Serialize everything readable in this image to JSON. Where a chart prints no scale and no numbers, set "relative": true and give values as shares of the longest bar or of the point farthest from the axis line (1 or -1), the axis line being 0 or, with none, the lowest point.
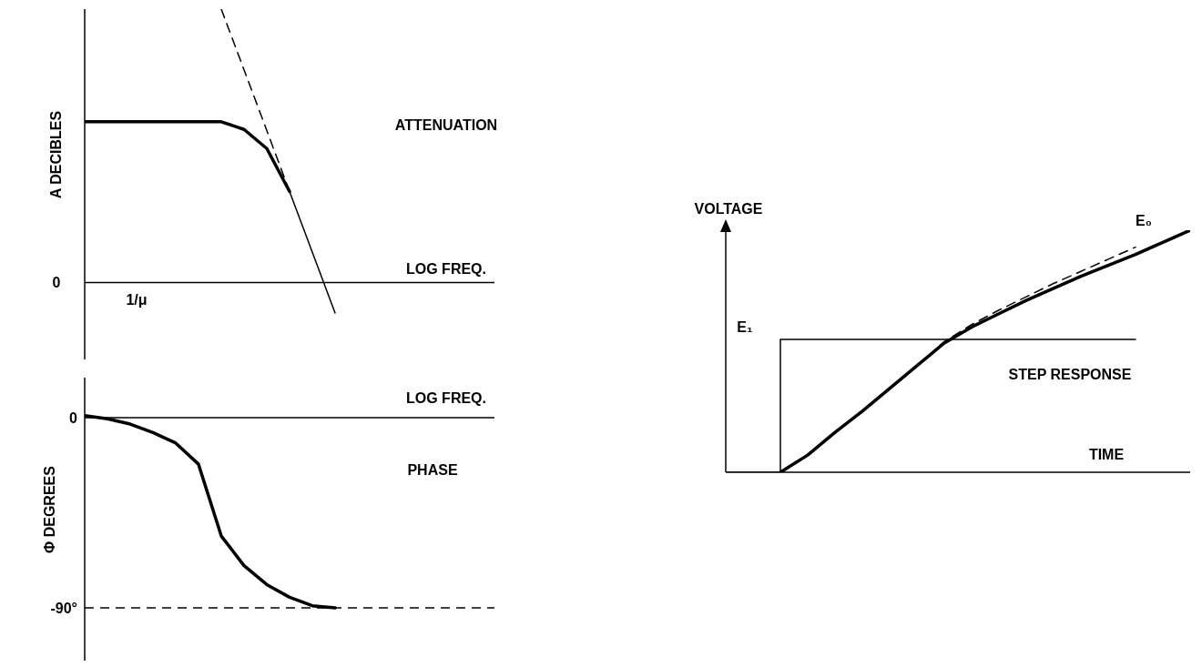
{
  "chart_data": [
    {
      "type": "line",
      "title": "ATTENUATION",
      "xlabel": "LOG FREQ.",
      "ylabel": "A DECIBLES",
      "relative": true,
      "marker": "none",
      "annotations": [
        "0",
        "1/μ"
      ],
      "categories": [
        null,
        null,
        null,
        null,
        null,
        null,
        null,
        null,
        null,
        null,
        null,
        null,
        null,
        null,
        null,
        null,
        null,
        null,
        null
      ],
      "series": [
        {
          "color": "#000000",
          "line_style": "solid",
          "values": [
            0.588,
            0.588,
            0.588,
            0.588,
            0.588,
            0.588,
            0.588,
            0.56,
            0.49,
            0.333,
            null,
            null,
            null,
            null,
            null,
            null,
            null,
            null,
            null
          ]
        },
        {
          "color": "#000000",
          "line_style": "solid",
          "values": [
            null,
            null,
            null,
            null,
            null,
            null,
            null,
            null,
            null,
            0.333,
            0.111,
            -0.111,
            null,
            null,
            null,
            null,
            null,
            null,
            null
          ]
        },
        {
          "color": "#000000",
          "line_style": "dashed",
          "values": [
            null,
            null,
            null,
            null,
            null,
            null,
            1,
            0.778,
            0.556,
            0.333,
            null,
            null,
            null,
            null,
            null,
            null,
            null,
            null,
            null
          ]
        }
      ]
    },
    {
      "type": "line",
      "title": "PHASE",
      "xlabel": "LOG FREQ.",
      "ylabel": "Φ DEGREES",
      "marker": "none",
      "ylim": [
        -115,
        19
      ],
      "yticks": [
        0,
        {
          "value": -90,
          "label": "-90°"
        }
      ],
      "ref_lines": [
        {
          "axis": "y",
          "value": 0,
          "color": "#000000",
          "line_style": "solid"
        },
        {
          "axis": "y",
          "value": -90,
          "color": "#000000",
          "line_style": "dashed"
        }
      ],
      "categories": [
        null,
        null,
        null,
        null,
        null,
        null,
        null,
        null,
        null,
        null,
        null,
        null,
        null,
        null,
        null,
        null,
        null,
        null,
        null
      ],
      "series": [
        {
          "color": "#000000",
          "line_style": "solid",
          "values": [
            1,
            -0.5,
            -3,
            -7,
            -12,
            -22,
            -56,
            -70,
            -79,
            -85,
            -89,
            -90,
            null,
            null,
            null,
            null,
            null,
            null,
            null
          ]
        }
      ]
    },
    {
      "type": "line",
      "xlabel": "TIME",
      "ylabel": "VOLTAGE",
      "relative": true,
      "marker": "none",
      "annotations": [
        "STEP RESPONSE"
      ],
      "categories": [
        null,
        null,
        null,
        null,
        null,
        null,
        null,
        null,
        null,
        null,
        null,
        null,
        null,
        null,
        null,
        null,
        null,
        null
      ],
      "series": [
        {
          "color": "#000000",
          "line_style": "solid",
          "values": [
            null,
            null,
            0,
            0.071,
            0.165,
            0.252,
            0.346,
            0.44,
            0.534,
            0.6,
            0.655,
            0.71,
            0.76,
            0.81,
            0.855,
            0.9,
            0.95,
            1
          ]
        },
        {
          "name": "E₀",
          "color": "#000000",
          "line_style": "dashed",
          "values": [
            null,
            null,
            null,
            null,
            null,
            null,
            null,
            0.44,
            0.54,
            0.61,
            0.67,
            0.725,
            0.78,
            0.83,
            0.88,
            0.93,
            null,
            null
          ]
        },
        {
          "name": "E₁",
          "type": "step",
          "color": "#000000",
          "line_style": "solid",
          "values": [
            0,
            0,
            0.549,
            0.549,
            0.549,
            0.549,
            0.549,
            0.549,
            0.549,
            0.549,
            0.549,
            0.549,
            0.549,
            0.549,
            0.549,
            0.549,
            null,
            null
          ]
        }
      ]
    }
  ]
}
